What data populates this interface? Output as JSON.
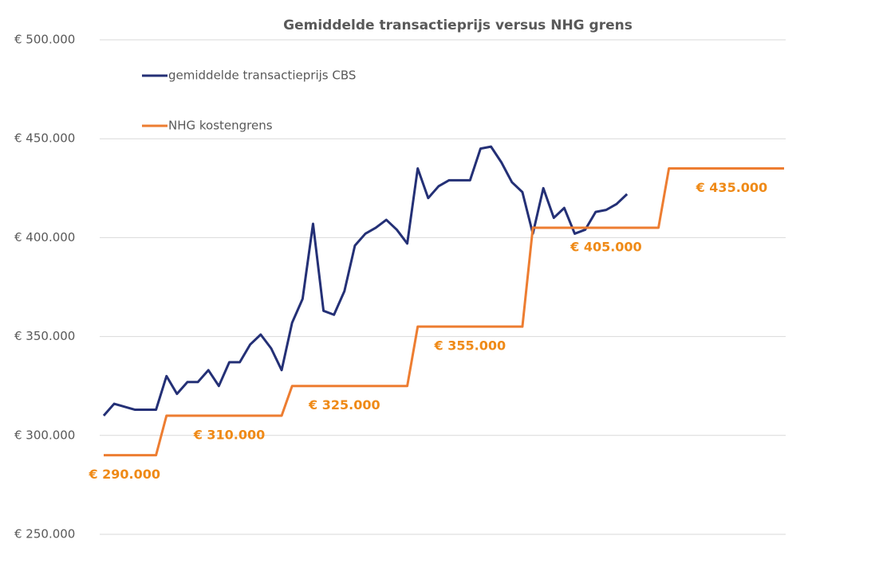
{
  "chart_data": {
    "type": "line",
    "title": "Gemiddelde transactieprijs versus NHG grens",
    "categories": [
      null,
      null,
      null,
      null,
      null,
      null,
      null,
      null,
      null,
      null,
      null,
      null,
      null,
      null,
      null,
      null,
      null,
      null,
      null,
      null,
      null,
      null,
      null,
      null,
      null,
      null,
      null,
      null,
      null,
      null,
      null,
      null,
      null,
      null,
      null,
      null,
      null,
      null,
      null,
      null,
      null,
      null,
      null,
      null,
      null,
      null,
      null,
      null,
      null,
      null,
      null,
      null,
      null,
      null,
      null,
      null,
      null,
      null,
      null,
      null,
      null,
      null,
      null,
      null,
      null,
      null
    ],
    "series": [
      {
        "name": "gemiddelde transactieprijs CBS",
        "color": "#243076",
        "values": [
          310000,
          316000,
          314500,
          313000,
          313000,
          313000,
          330000,
          321000,
          327000,
          327000,
          333000,
          325000,
          337000,
          337000,
          346000,
          351000,
          344000,
          333000,
          357000,
          369000,
          407000,
          363000,
          361000,
          373000,
          396000,
          402000,
          405000,
          409000,
          404000,
          397000,
          435000,
          420000,
          426000,
          429000,
          429000,
          429000,
          445000,
          446000,
          438000,
          428000,
          423000,
          402000,
          425000,
          410000,
          415000,
          402000,
          404000,
          413000,
          414000,
          417000,
          422000,
          null,
          null,
          null,
          null,
          null,
          null,
          null,
          null,
          null,
          null,
          null,
          null,
          null,
          null,
          null
        ]
      },
      {
        "name": "NHG kostengrens",
        "color": "#ed7d31",
        "values": [
          290000,
          290000,
          290000,
          290000,
          290000,
          290000,
          310000,
          310000,
          310000,
          310000,
          310000,
          310000,
          310000,
          310000,
          310000,
          310000,
          310000,
          310000,
          325000,
          325000,
          325000,
          325000,
          325000,
          325000,
          325000,
          325000,
          325000,
          325000,
          325000,
          325000,
          355000,
          355000,
          355000,
          355000,
          355000,
          355000,
          355000,
          355000,
          355000,
          355000,
          355000,
          405000,
          405000,
          405000,
          405000,
          405000,
          405000,
          405000,
          405000,
          405000,
          405000,
          405000,
          405000,
          405000,
          435000,
          435000,
          435000,
          435000,
          435000,
          435000,
          435000,
          435000,
          435000,
          435000,
          435000,
          435000
        ],
        "value_labels": [
          null,
          null,
          "€ 290.000",
          null,
          null,
          null,
          null,
          null,
          null,
          null,
          null,
          null,
          "€ 310.000",
          null,
          null,
          null,
          null,
          null,
          null,
          null,
          null,
          null,
          null,
          "€ 325.000",
          null,
          null,
          null,
          null,
          null,
          null,
          null,
          null,
          null,
          null,
          null,
          "€ 355.000",
          null,
          null,
          null,
          null,
          null,
          null,
          null,
          null,
          null,
          null,
          null,
          null,
          "€ 405.000",
          null,
          null,
          null,
          null,
          null,
          null,
          null,
          null,
          null,
          null,
          null,
          "€ 435.000",
          null,
          null,
          null,
          null,
          null
        ]
      }
    ],
    "ylim": [
      250000,
      500000
    ],
    "yticks": [
      {
        "value": 250000,
        "label": "€ 250.000"
      },
      {
        "value": 300000,
        "label": "€ 300.000"
      },
      {
        "value": 350000,
        "label": "€ 350.000"
      },
      {
        "value": 400000,
        "label": "€ 400.000"
      },
      {
        "value": 450000,
        "label": "€ 450.000"
      },
      {
        "value": 500000,
        "label": "€ 500.000"
      }
    ],
    "grid": true,
    "legend": "upper-left",
    "value_label_color": "#ef8a17"
  }
}
